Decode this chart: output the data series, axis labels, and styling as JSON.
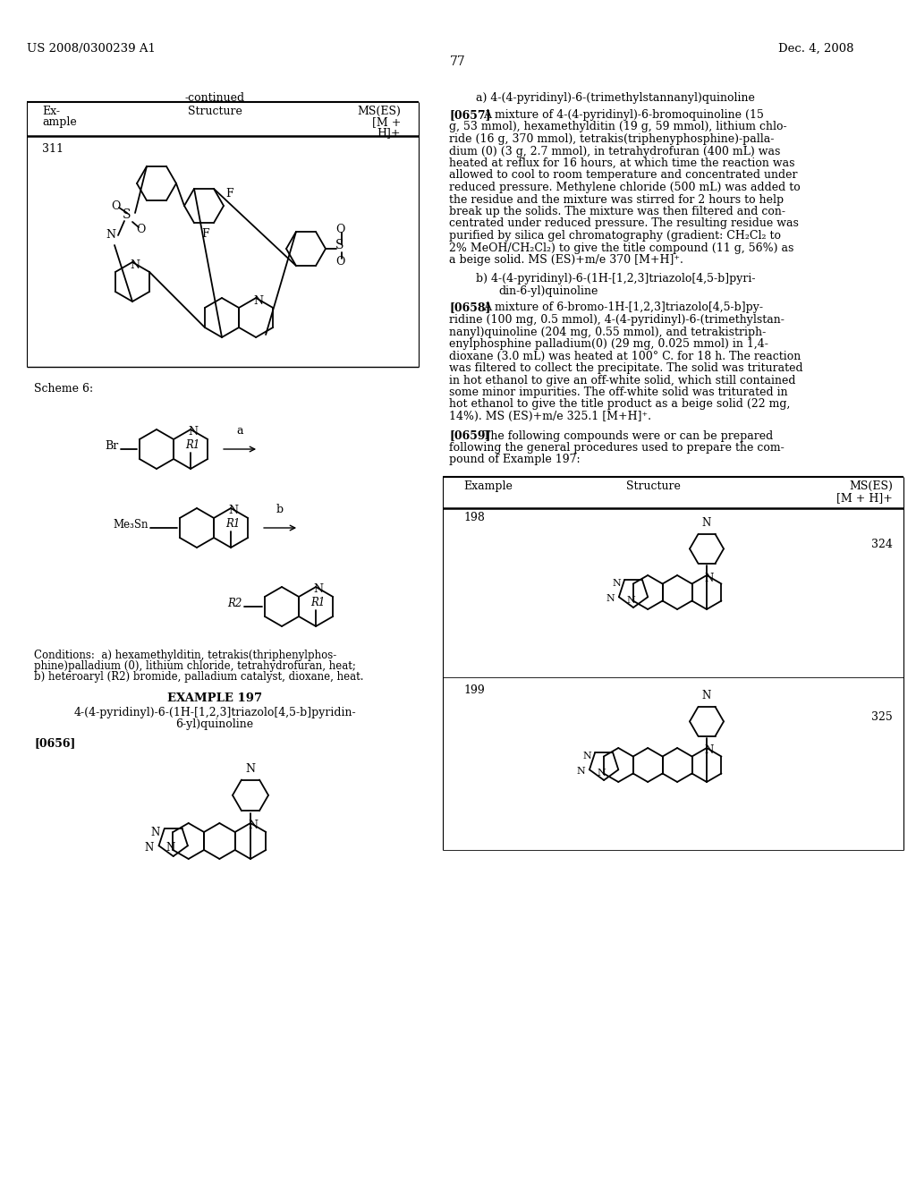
{
  "page_number": "77",
  "header_left": "US 2008/0300239 A1",
  "header_right": "Dec. 4, 2008",
  "bg_color": "#ffffff",
  "text_color": "#000000",
  "table_title": "-continued",
  "example_311": "311",
  "scheme_label": "Scheme 6:",
  "conditions_line1": "Conditions:  a) hexamethylditin, tetrakis(thriphenylphos-",
  "conditions_line2": "phine)palladium (0), lithium chloride, tetrahydrofuran, heat;",
  "conditions_line3": "b) heteroaryl (R2) bromide, palladium catalyst, dioxane, heat.",
  "example_197_title": "EXAMPLE 197",
  "example_197_name1": "4-(4-pyridinyl)-6-(1H-[1,2,3]triazolo[4,5-b]pyridin-",
  "example_197_name2": "6-yl)quinoline",
  "para_0656": "[0656]",
  "section_a_title": "a) 4-(4-pyridinyl)-6-(trimethylstannanyl)quinoline",
  "para_0657": "[0657]",
  "para_0657_text": [
    "A mixture of 4-(4-pyridinyl)-6-bromoquinoline (15",
    "g, 53 mmol), hexamethylditin (19 g, 59 mmol), lithium chlo-",
    "ride (16 g, 370 mmol), tetrakis(triphenyphosphine)-palla-",
    "dium (0) (3 g, 2.7 mmol), in tetrahydrofuran (400 mL) was",
    "heated at reflux for 16 hours, at which time the reaction was",
    "allowed to cool to room temperature and concentrated under",
    "reduced pressure. Methylene chloride (500 mL) was added to",
    "the residue and the mixture was stirred for 2 hours to help",
    "break up the solids. The mixture was then filtered and con-",
    "centrated under reduced pressure. The resulting residue was",
    "purified by silica gel chromatography (gradient: CH₂Cl₂ to",
    "2% MeOH/CH₂Cl₂) to give the title compound (11 g, 56%) as",
    "a beige solid. MS (ES)+m/e 370 [M+H]⁺."
  ],
  "section_b_title1": "b) 4-(4-pyridinyl)-6-(1H-[1,2,3]triazolo[4,5-b]pyri-",
  "section_b_title2": "din-6-yl)quinoline",
  "para_0658": "[0658]",
  "para_0658_text": [
    "A mixture of 6-bromo-1H-[1,2,3]triazolo[4,5-b]py-",
    "ridine (100 mg, 0.5 mmol), 4-(4-pyridinyl)-6-(trimethylstan-",
    "nanyl)quinoline (204 mg, 0.55 mmol), and tetrakistriph-",
    "enylphosphine palladium(0) (29 mg, 0.025 mmol) in 1,4-",
    "dioxane (3.0 mL) was heated at 100° C. for 18 h. The reaction",
    "was filtered to collect the precipitate. The solid was triturated",
    "in hot ethanol to give an off-white solid, which still contained",
    "some minor impurities. The off-white solid was triturated in",
    "hot ethanol to give the title product as a beige solid (22 mg,",
    "14%). MS (ES)+m/e 325.1 [M+H]⁺."
  ],
  "para_0659": "[0659]",
  "para_0659_text": [
    "The following compounds were or can be prepared",
    "following the general procedures used to prepare the com-",
    "pound of Example 197:"
  ],
  "example_198": "198",
  "example_198_ms": "324",
  "example_199": "199",
  "example_199_ms": "325"
}
